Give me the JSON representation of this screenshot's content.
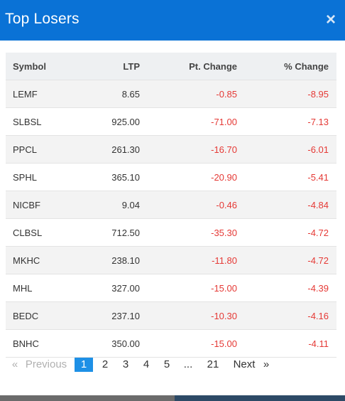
{
  "modal": {
    "title": "Top Losers",
    "close_icon": "×"
  },
  "table": {
    "columns": [
      "Symbol",
      "LTP",
      "Pt. Change",
      "% Change"
    ],
    "rows": [
      {
        "symbol": "LEMF",
        "ltp": "8.65",
        "pt_change": "-0.85",
        "pct_change": "-8.95"
      },
      {
        "symbol": "SLBSL",
        "ltp": "925.00",
        "pt_change": "-71.00",
        "pct_change": "-7.13"
      },
      {
        "symbol": "PPCL",
        "ltp": "261.30",
        "pt_change": "-16.70",
        "pct_change": "-6.01"
      },
      {
        "symbol": "SPHL",
        "ltp": "365.10",
        "pt_change": "-20.90",
        "pct_change": "-5.41"
      },
      {
        "symbol": "NICBF",
        "ltp": "9.04",
        "pt_change": "-0.46",
        "pct_change": "-4.84"
      },
      {
        "symbol": "CLBSL",
        "ltp": "712.50",
        "pt_change": "-35.30",
        "pct_change": "-4.72"
      },
      {
        "symbol": "MKHC",
        "ltp": "238.10",
        "pt_change": "-11.80",
        "pct_change": "-4.72"
      },
      {
        "symbol": "MHL",
        "ltp": "327.00",
        "pt_change": "-15.00",
        "pct_change": "-4.39"
      },
      {
        "symbol": "BEDC",
        "ltp": "237.10",
        "pt_change": "-10.30",
        "pct_change": "-4.16"
      },
      {
        "symbol": "BNHC",
        "ltp": "350.00",
        "pt_change": "-15.00",
        "pct_change": "-4.11"
      }
    ]
  },
  "pagination": {
    "first_arrow": "«",
    "previous": "Previous",
    "pages": [
      "1",
      "2",
      "3",
      "4",
      "5"
    ],
    "ellipsis": "...",
    "last_page": "21",
    "next": "Next",
    "last_arrow": "»",
    "current_page": "1"
  },
  "colors": {
    "header_blue": "#0a72d6",
    "negative_red": "#e53935",
    "active_page_blue": "#1e90e6"
  }
}
